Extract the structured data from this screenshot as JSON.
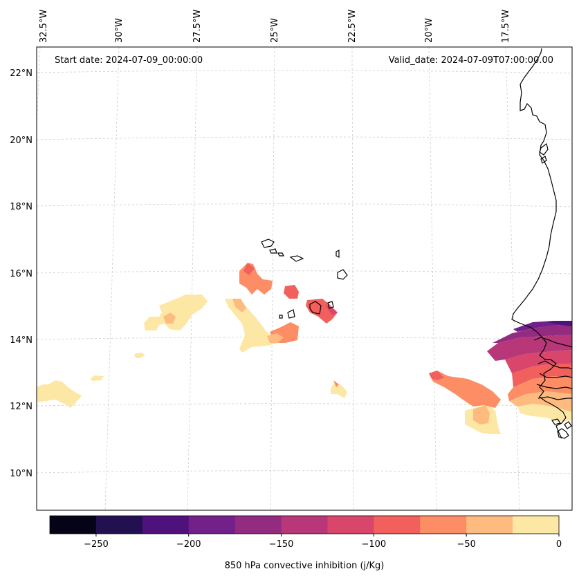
{
  "header": {
    "start_date": "Start date: 2024-07-09_00:00:00",
    "valid_date": "Valid_date: 2024-07-09T07:00:00.00"
  },
  "lon_labels": [
    "32.5°W",
    "30°W",
    "27.5°W",
    "25°W",
    "22.5°W",
    "20°W",
    "17.5°W"
  ],
  "lat_labels": [
    "22°N",
    "20°N",
    "18°N",
    "16°N",
    "14°N",
    "12°N",
    "10°N"
  ],
  "colorbar": {
    "label": "850 hPa convective inhibition (j/Kg)",
    "tick_labels": [
      "−250",
      "−200",
      "−150",
      "−100",
      "−50",
      "0"
    ],
    "colors": [
      "#050417",
      "#221050",
      "#4f117b",
      "#72208a",
      "#932b80",
      "#b73779",
      "#d9466b",
      "#f1605d",
      "#fc8d64",
      "#febb80",
      "#fde7a5"
    ]
  }
}
